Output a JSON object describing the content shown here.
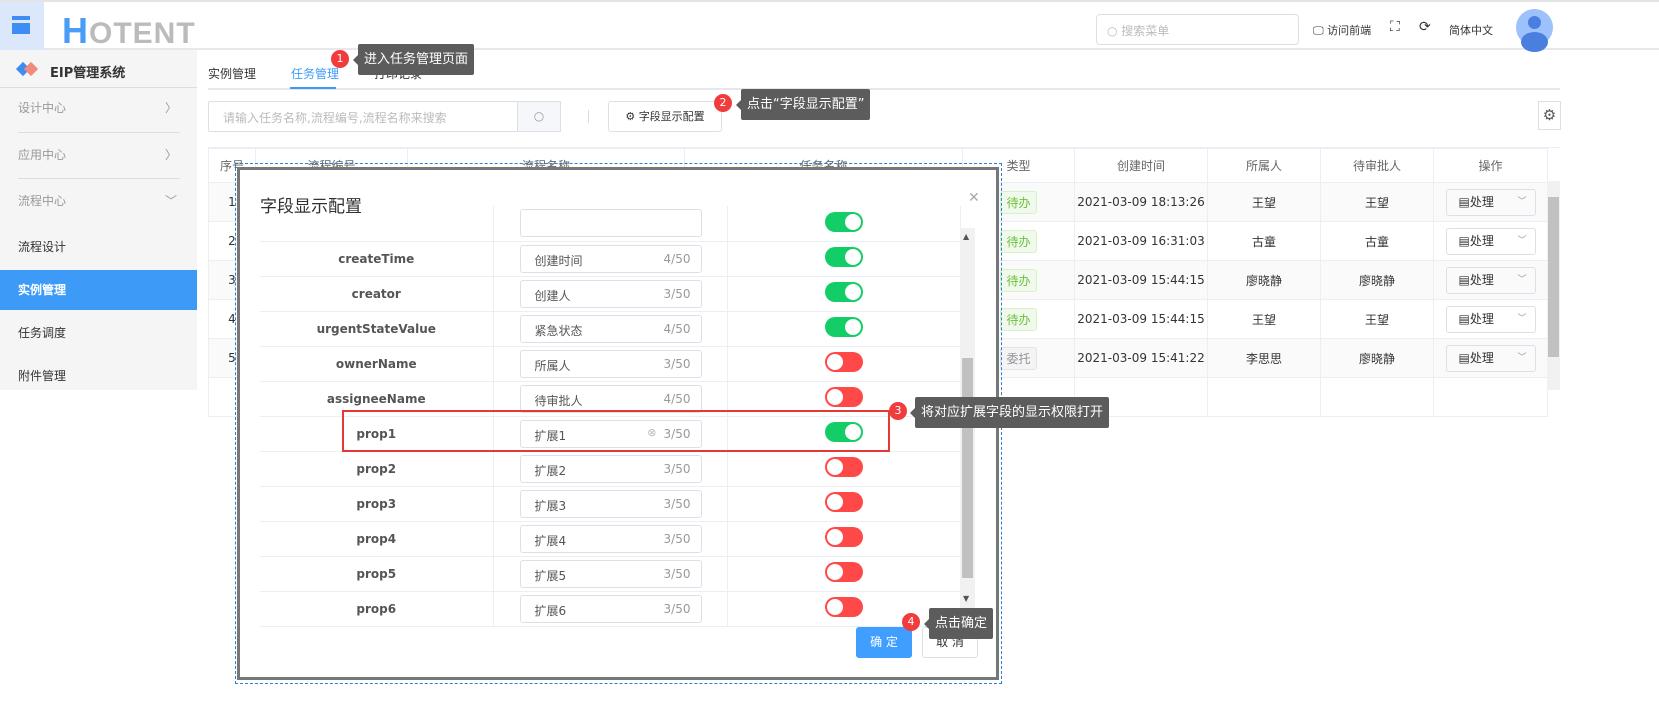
{
  "header": {
    "logo": "HOTENT",
    "search_placeholder": "搜索菜单",
    "visit_frontend": "访问前端",
    "language": "简体中文"
  },
  "sidebar": {
    "brand": "EIP管理系统",
    "groups": [
      {
        "label": "设计中心"
      },
      {
        "label": "应用中心"
      },
      {
        "label": "流程中心"
      }
    ],
    "items": [
      {
        "label": "流程设计"
      },
      {
        "label": "实例管理",
        "active": true
      },
      {
        "label": "任务调度"
      },
      {
        "label": "附件管理"
      }
    ]
  },
  "tabs": [
    {
      "label": "实例管理"
    },
    {
      "label": "任务管理",
      "active": true
    },
    {
      "label": "打印记录"
    }
  ],
  "toolbar": {
    "search_placeholder": "请输入任务名称,流程编号,流程名称来搜索",
    "field_config_label": "字段显示配置"
  },
  "table": {
    "columns": [
      "序号",
      "流程编号",
      "流程名称",
      "任务名称",
      "类型",
      "创建时间",
      "所属人",
      "待审批人",
      "操作"
    ],
    "rows": [
      {
        "no": "1",
        "type": "待办",
        "created": "2021-03-09 18:13:26",
        "owner": "王望",
        "assignee": "王望",
        "action": "处理"
      },
      {
        "no": "2",
        "type": "待办",
        "created": "2021-03-09 16:31:03",
        "owner": "古童",
        "assignee": "古童",
        "action": "处理"
      },
      {
        "no": "3",
        "type": "待办",
        "created": "2021-03-09 15:44:15",
        "owner": "廖晓静",
        "assignee": "廖晓静",
        "action": "处理"
      },
      {
        "no": "4",
        "type": "待办",
        "created": "2021-03-09 15:44:15",
        "owner": "王望",
        "assignee": "王望",
        "action": "处理"
      },
      {
        "no": "5",
        "type": "委托",
        "created": "2021-03-09 15:41:22",
        "owner": "李思思",
        "assignee": "廖晓静",
        "action": "处理"
      }
    ]
  },
  "modal": {
    "title": "字段显示配置",
    "ok": "确 定",
    "cancel": "取 消",
    "fields": [
      {
        "name": "",
        "label": "",
        "count": "",
        "on": true
      },
      {
        "name": "createTime",
        "label": "创建时间",
        "count": "4/50",
        "on": true
      },
      {
        "name": "creator",
        "label": "创建人",
        "count": "3/50",
        "on": true
      },
      {
        "name": "urgentStateValue",
        "label": "紧急状态",
        "count": "4/50",
        "on": true
      },
      {
        "name": "ownerName",
        "label": "所属人",
        "count": "3/50",
        "on": false
      },
      {
        "name": "assigneeName",
        "label": "待审批人",
        "count": "4/50",
        "on": false
      },
      {
        "name": "prop1",
        "label": "扩展1",
        "count": "3/50",
        "on": true,
        "focused": true
      },
      {
        "name": "prop2",
        "label": "扩展2",
        "count": "3/50",
        "on": false
      },
      {
        "name": "prop3",
        "label": "扩展3",
        "count": "3/50",
        "on": false
      },
      {
        "name": "prop4",
        "label": "扩展4",
        "count": "3/50",
        "on": false
      },
      {
        "name": "prop5",
        "label": "扩展5",
        "count": "3/50",
        "on": false
      },
      {
        "name": "prop6",
        "label": "扩展6",
        "count": "3/50",
        "on": false
      }
    ]
  },
  "annotations": [
    {
      "num": "1",
      "text": "进入任务管理页面"
    },
    {
      "num": "2",
      "text": "点击“字段显示配置”"
    },
    {
      "num": "3",
      "text": "将对应扩展字段的显示权限打开"
    },
    {
      "num": "4",
      "text": "点击确定"
    }
  ],
  "colors": {
    "accent": "#3d9bf7",
    "switch_on": "#13ce66",
    "switch_off": "#ff4949",
    "annotation": "#f03c3c"
  }
}
